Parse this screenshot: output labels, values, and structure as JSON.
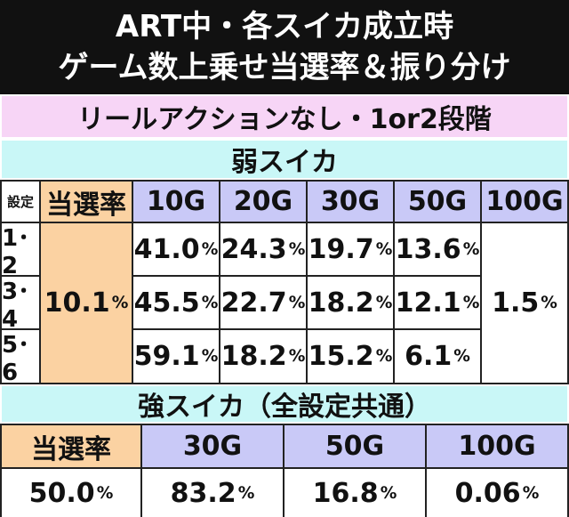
{
  "title": {
    "line1": "ART中・各スイカ成立時",
    "line2": "ゲーム数上乗せ当選率＆振り分け"
  },
  "section1": {
    "banner": "リールアクションなし・1or2段階",
    "subtitle": "弱スイカ",
    "header": {
      "setting": "設定",
      "rate": "当選率",
      "cols": [
        "10G",
        "20G",
        "30G",
        "50G",
        "100G"
      ]
    },
    "rows": [
      {
        "setting": "1･2",
        "values": [
          "41.0",
          "24.3",
          "19.7",
          "13.6"
        ]
      },
      {
        "setting": "3･4",
        "values": [
          "45.5",
          "22.7",
          "18.2",
          "12.1"
        ]
      },
      {
        "setting": "5･6",
        "values": [
          "59.1",
          "18.2",
          "15.2",
          "6.1"
        ]
      }
    ],
    "rate_value": "10.1",
    "col100_value": "1.5",
    "pct": "%"
  },
  "section2": {
    "subtitle": "強スイカ（全設定共通）",
    "header": {
      "rate": "当選率",
      "cols": [
        "30G",
        "50G",
        "100G"
      ]
    },
    "rate_value": "50.0",
    "values": [
      "83.2",
      "16.8",
      "0.06"
    ],
    "pct": "%"
  }
}
